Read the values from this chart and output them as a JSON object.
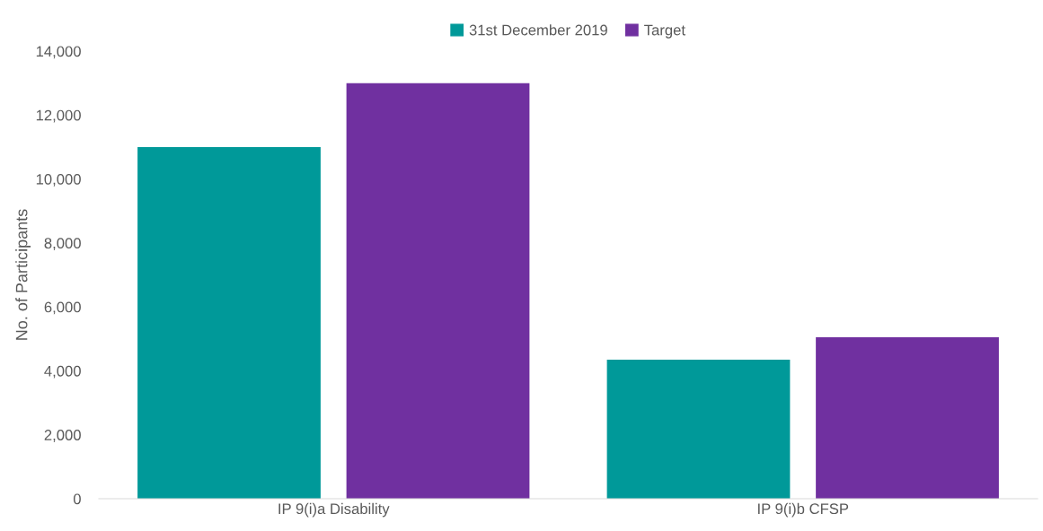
{
  "chart_data": {
    "type": "bar",
    "ylabel": "No. of Participants",
    "categories": [
      "IP 9(i)a Disability",
      "IP 9(i)b CFSP"
    ],
    "series": [
      {
        "name": "31st December 2019",
        "color": "#009999",
        "values": [
          11000,
          4350
        ]
      },
      {
        "name": "Target",
        "color": "#7030a0",
        "values": [
          13000,
          5050
        ]
      }
    ],
    "ylim": [
      0,
      14000
    ],
    "yticks": [
      {
        "value": 0,
        "label": "0"
      },
      {
        "value": 2000,
        "label": "2,000"
      },
      {
        "value": 4000,
        "label": "4,000"
      },
      {
        "value": 6000,
        "label": "6,000"
      },
      {
        "value": 8000,
        "label": "8,000"
      },
      {
        "value": 10000,
        "label": "10,000"
      },
      {
        "value": 12000,
        "label": "12,000"
      },
      {
        "value": 14000,
        "label": "14,000"
      }
    ],
    "grid": false,
    "legend": "top"
  }
}
